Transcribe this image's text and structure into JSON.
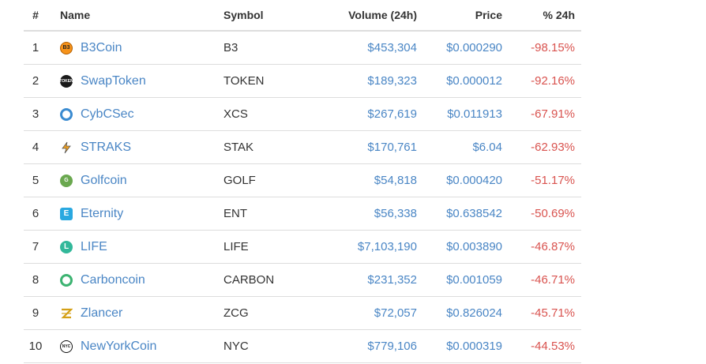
{
  "table": {
    "headers": {
      "rank": "#",
      "name": "Name",
      "symbol": "Symbol",
      "volume": "Volume (24h)",
      "price": "Price",
      "change": "% 24h"
    },
    "rows": [
      {
        "rank": "1",
        "name": "B3Coin",
        "icon": "b3coin-icon",
        "icon_text": "B3",
        "symbol": "B3",
        "volume": "$453,304",
        "price": "$0.000290",
        "change": "-98.15%"
      },
      {
        "rank": "2",
        "name": "SwapToken",
        "icon": "swaptoken-icon",
        "icon_text": "TOKEN",
        "symbol": "TOKEN",
        "volume": "$189,323",
        "price": "$0.000012",
        "change": "-92.16%"
      },
      {
        "rank": "3",
        "name": "CybCSec",
        "icon": "cybcsec-icon",
        "icon_text": "",
        "symbol": "XCS",
        "volume": "$267,619",
        "price": "$0.011913",
        "change": "-67.91%"
      },
      {
        "rank": "4",
        "name": "STRAKS",
        "icon": "straks-icon",
        "icon_text": "",
        "symbol": "STAK",
        "volume": "$170,761",
        "price": "$6.04",
        "change": "-62.93%"
      },
      {
        "rank": "5",
        "name": "Golfcoin",
        "icon": "golfcoin-icon",
        "icon_text": "G",
        "symbol": "GOLF",
        "volume": "$54,818",
        "price": "$0.000420",
        "change": "-51.17%"
      },
      {
        "rank": "6",
        "name": "Eternity",
        "icon": "eternity-icon",
        "icon_text": "E",
        "symbol": "ENT",
        "volume": "$56,338",
        "price": "$0.638542",
        "change": "-50.69%"
      },
      {
        "rank": "7",
        "name": "LIFE",
        "icon": "life-icon",
        "icon_text": "L",
        "symbol": "LIFE",
        "volume": "$7,103,190",
        "price": "$0.003890",
        "change": "-46.87%"
      },
      {
        "rank": "8",
        "name": "Carboncoin",
        "icon": "carboncoin-icon",
        "icon_text": "",
        "symbol": "CARBON",
        "volume": "$231,352",
        "price": "$0.001059",
        "change": "-46.71%"
      },
      {
        "rank": "9",
        "name": "Zlancer",
        "icon": "zlancer-icon",
        "icon_text": "",
        "symbol": "ZCG",
        "volume": "$72,057",
        "price": "$0.826024",
        "change": "-45.71%"
      },
      {
        "rank": "10",
        "name": "NewYorkCoin",
        "icon": "newyorkcoin-icon",
        "icon_text": "NYC",
        "symbol": "NYC",
        "volume": "$779,106",
        "price": "$0.000319",
        "change": "-44.53%"
      }
    ]
  },
  "colors": {
    "link": "#4a86c5",
    "negative": "#d9534f",
    "border": "#dddddd"
  }
}
